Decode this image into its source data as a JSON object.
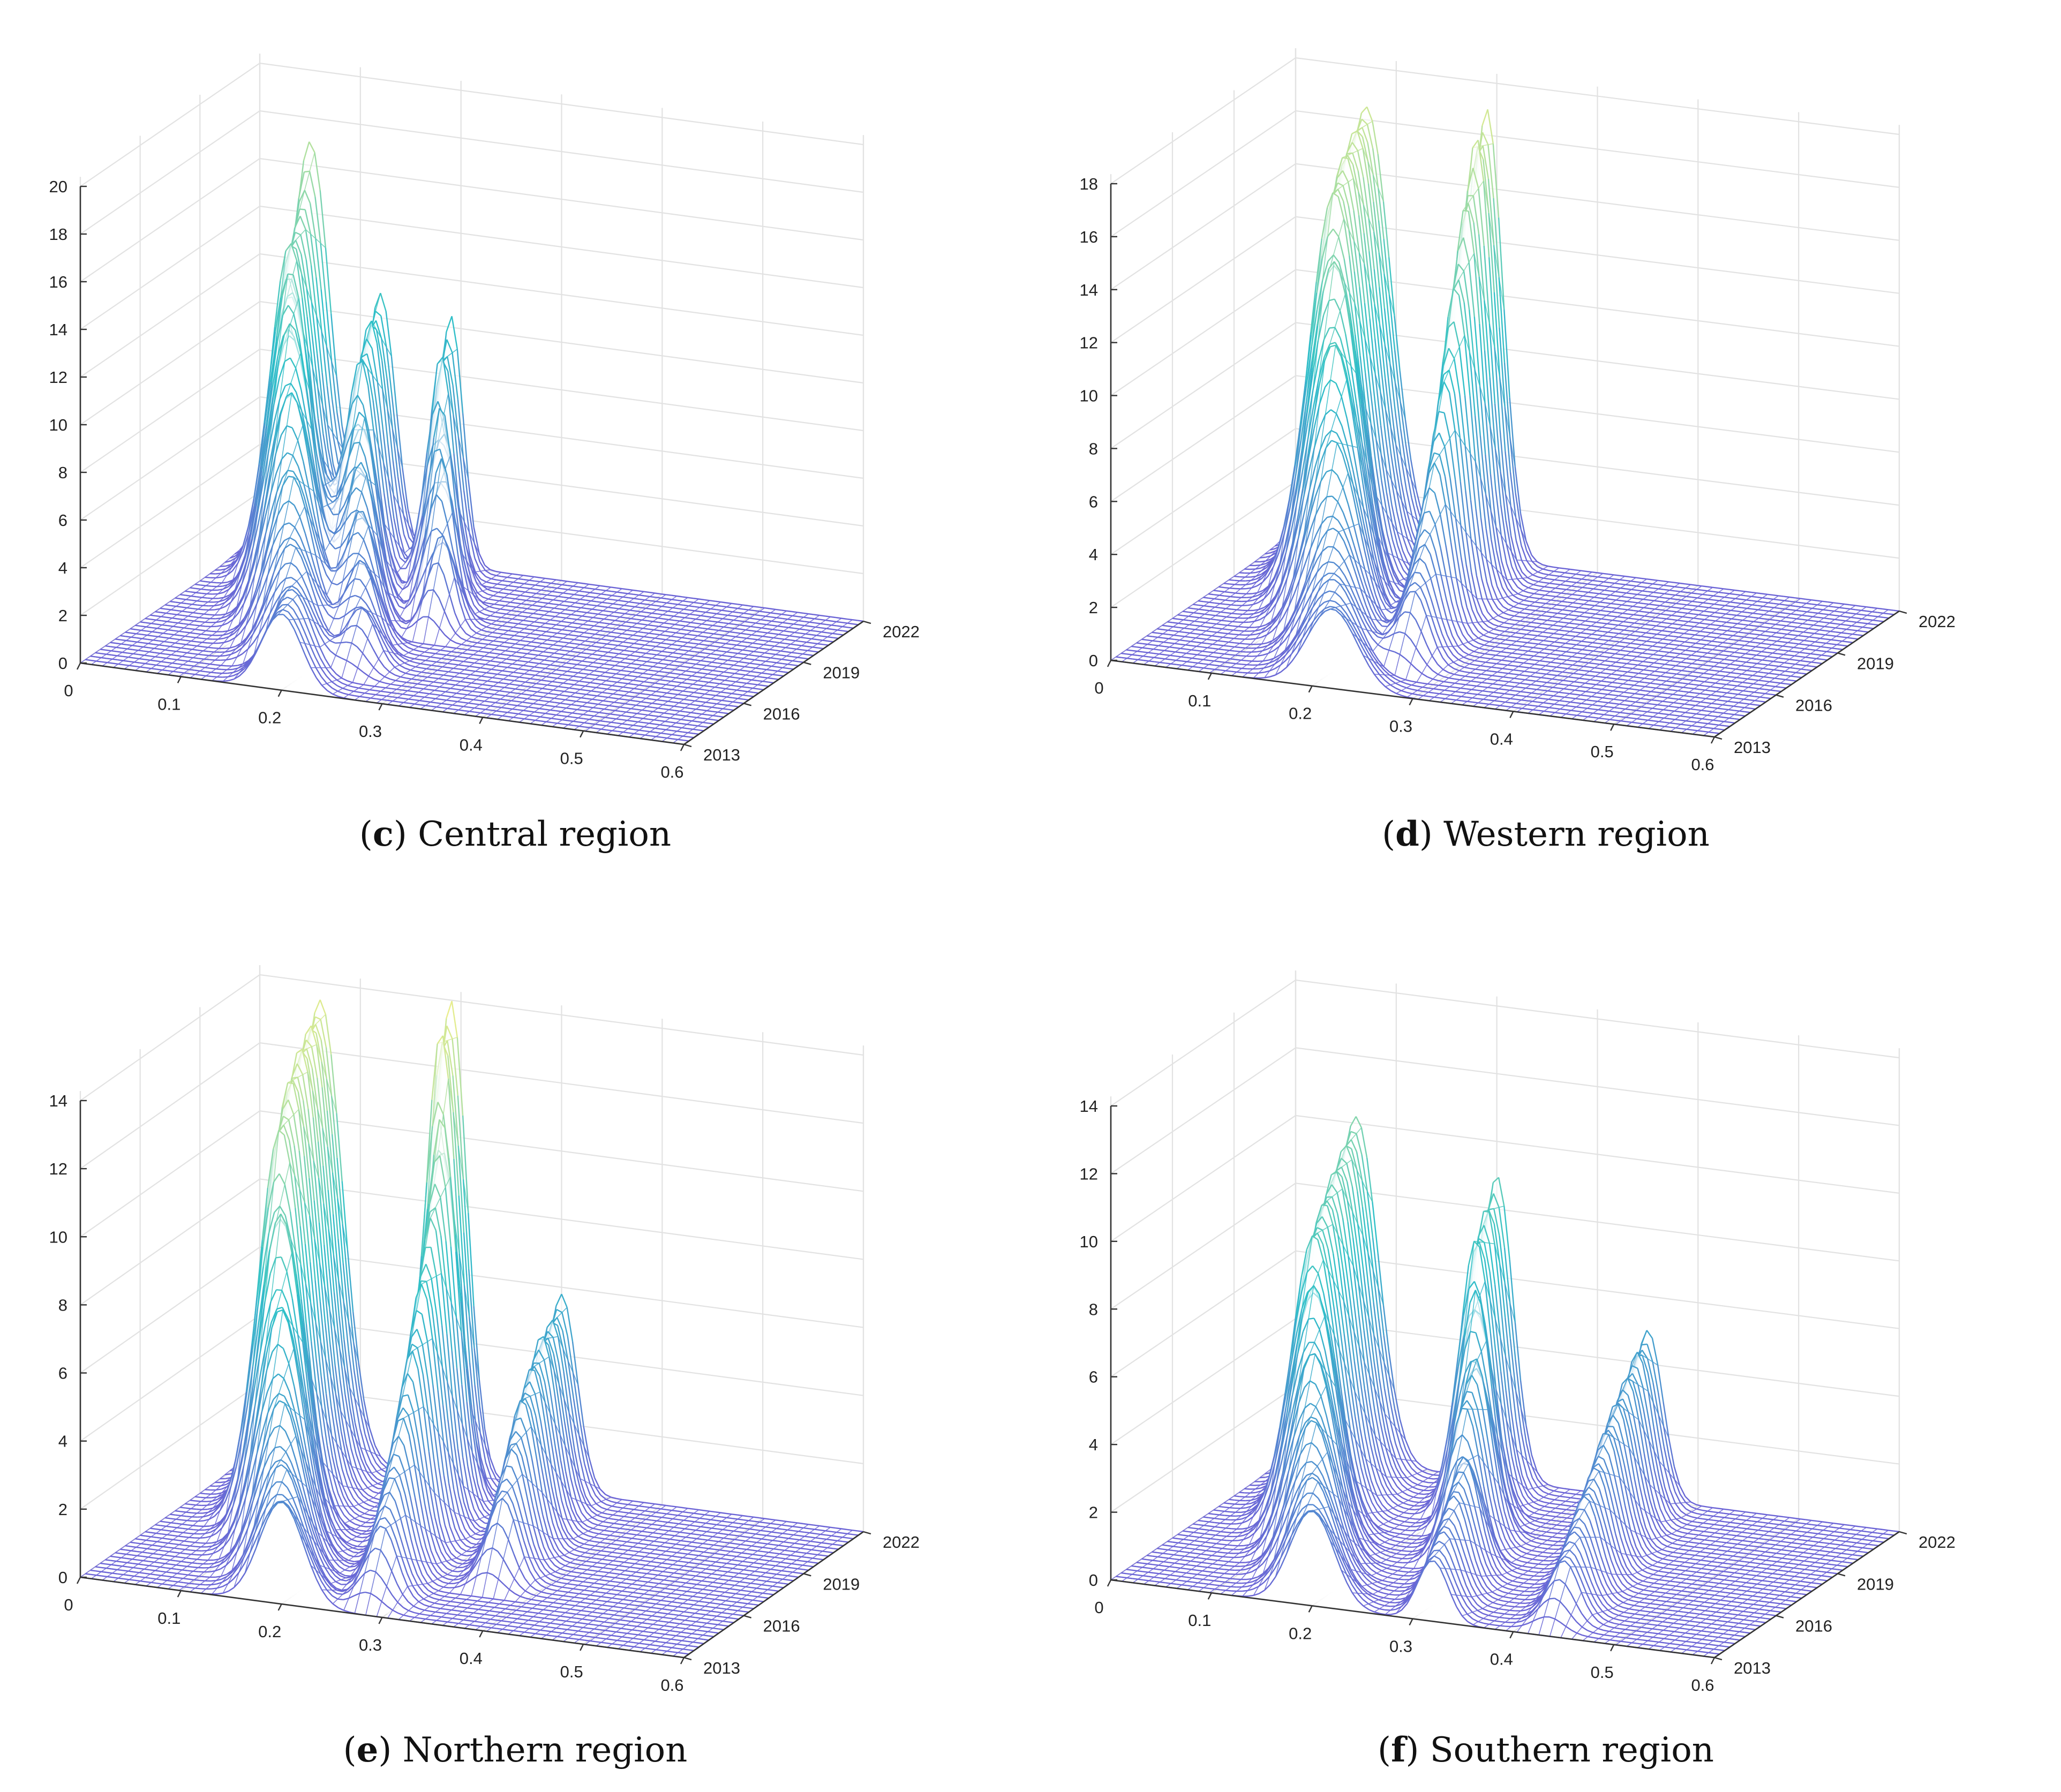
{
  "figure": {
    "panels": [
      {
        "id": "c",
        "letter": "c",
        "caption": "Central region",
        "chart_data": {
          "type": "surface",
          "title": "(c) Central region",
          "x": [
            0,
            0.1,
            0.2,
            0.3,
            0.4,
            0.5,
            0.6
          ],
          "x_ticks": [
            "0",
            "0.1",
            "0.2",
            "0.3",
            "0.4",
            "0.5",
            "0.6"
          ],
          "y_ticks": [
            "2013",
            "2016",
            "2019",
            "2022"
          ],
          "z_ticks": [
            "0",
            "2",
            "4",
            "6",
            "8",
            "10",
            "12",
            "14",
            "16",
            "18",
            "20"
          ],
          "zlim": [
            0,
            20
          ],
          "years": [
            2013,
            2014,
            2015,
            2016,
            2017,
            2018,
            2019,
            2020,
            2021,
            2022
          ],
          "series": [
            {
              "year": 2013,
              "peaks": [
                [
                  0.2,
                  3.2,
                  0.02
                ]
              ]
            },
            {
              "year": 2014,
              "peaks": [
                [
                  0.19,
                  3.6,
                  0.02
                ]
              ]
            },
            {
              "year": 2015,
              "peaks": [
                [
                  0.17,
                  4.8,
                  0.022
                ],
                [
                  0.24,
                  2.5,
                  0.015
                ]
              ]
            },
            {
              "year": 2016,
              "peaks": [
                [
                  0.15,
                  7.0,
                  0.022
                ],
                [
                  0.22,
                  3.8,
                  0.015
                ]
              ]
            },
            {
              "year": 2017,
              "peaks": [
                [
                  0.13,
                  9.8,
                  0.022
                ],
                [
                  0.2,
                  5.2,
                  0.015
                ]
              ]
            },
            {
              "year": 2018,
              "peaks": [
                [
                  0.11,
                  12.0,
                  0.022
                ],
                [
                  0.18,
                  6.5,
                  0.015
                ],
                [
                  0.26,
                  4.0,
                  0.012
                ]
              ]
            },
            {
              "year": 2019,
              "peaks": [
                [
                  0.09,
                  13.5,
                  0.02
                ],
                [
                  0.16,
                  8.0,
                  0.015
                ],
                [
                  0.24,
                  6.5,
                  0.012
                ]
              ]
            },
            {
              "year": 2020,
              "peaks": [
                [
                  0.07,
                  14.0,
                  0.02
                ],
                [
                  0.14,
                  9.5,
                  0.015
                ],
                [
                  0.22,
                  8.0,
                  0.012
                ]
              ]
            },
            {
              "year": 2021,
              "peaks": [
                [
                  0.06,
                  14.5,
                  0.02
                ],
                [
                  0.13,
                  10.5,
                  0.015
                ],
                [
                  0.2,
                  9.5,
                  0.012
                ]
              ]
            },
            {
              "year": 2022,
              "peaks": [
                [
                  0.05,
                  17.0,
                  0.02
                ],
                [
                  0.12,
                  11.0,
                  0.015
                ],
                [
                  0.19,
                  10.5,
                  0.012
                ]
              ]
            }
          ]
        }
      },
      {
        "id": "d",
        "letter": "d",
        "caption": "Western region",
        "chart_data": {
          "type": "surface",
          "title": "(d) Western region",
          "x": [
            0,
            0.1,
            0.2,
            0.3,
            0.4,
            0.5,
            0.6
          ],
          "x_ticks": [
            "0",
            "0.1",
            "0.2",
            "0.3",
            "0.4",
            "0.5",
            "0.6"
          ],
          "y_ticks": [
            "2013",
            "2016",
            "2019",
            "2022"
          ],
          "z_ticks": [
            "0",
            "2",
            "4",
            "6",
            "8",
            "10",
            "12",
            "14",
            "16",
            "18"
          ],
          "zlim": [
            0,
            18
          ],
          "years": [
            2013,
            2014,
            2015,
            2016,
            2017,
            2018,
            2019,
            2020,
            2021,
            2022
          ],
          "series": [
            {
              "year": 2013,
              "peaks": [
                [
                  0.22,
                  3.0,
                  0.025
                ]
              ]
            },
            {
              "year": 2014,
              "peaks": [
                [
                  0.2,
                  3.5,
                  0.025
                ]
              ]
            },
            {
              "year": 2015,
              "peaks": [
                [
                  0.18,
                  4.8,
                  0.025
                ],
                [
                  0.26,
                  2.8,
                  0.015
                ]
              ]
            },
            {
              "year": 2016,
              "peaks": [
                [
                  0.16,
                  7.5,
                  0.025
                ],
                [
                  0.25,
                  4.0,
                  0.015
                ]
              ]
            },
            {
              "year": 2017,
              "peaks": [
                [
                  0.14,
                  10.5,
                  0.025
                ],
                [
                  0.24,
                  6.5,
                  0.015
                ]
              ]
            },
            {
              "year": 2018,
              "peaks": [
                [
                  0.12,
                  13.0,
                  0.025
                ],
                [
                  0.23,
                  9.0,
                  0.015
                ]
              ]
            },
            {
              "year": 2019,
              "peaks": [
                [
                  0.1,
                  15.0,
                  0.025
                ],
                [
                  0.22,
                  12.0,
                  0.016
                ]
              ]
            },
            {
              "year": 2020,
              "peaks": [
                [
                  0.09,
                  15.8,
                  0.025
                ],
                [
                  0.21,
                  14.5,
                  0.016
                ]
              ]
            },
            {
              "year": 2021,
              "peaks": [
                [
                  0.08,
                  16.2,
                  0.025
                ],
                [
                  0.2,
                  16.5,
                  0.016
                ]
              ]
            },
            {
              "year": 2022,
              "peaks": [
                [
                  0.07,
                  16.5,
                  0.025
                ],
                [
                  0.19,
                  17.0,
                  0.016
                ]
              ]
            }
          ]
        }
      },
      {
        "id": "e",
        "letter": "e",
        "caption": "Northern region",
        "chart_data": {
          "type": "surface",
          "title": "(e) Northern region",
          "x": [
            0,
            0.1,
            0.2,
            0.3,
            0.4,
            0.5,
            0.6
          ],
          "x_ticks": [
            "0",
            "0.1",
            "0.2",
            "0.3",
            "0.4",
            "0.5",
            "0.6"
          ],
          "y_ticks": [
            "2013",
            "2016",
            "2019",
            "2022"
          ],
          "z_ticks": [
            "0",
            "2",
            "4",
            "6",
            "8",
            "10",
            "12",
            "14"
          ],
          "zlim": [
            0,
            14
          ],
          "years": [
            2013,
            2014,
            2015,
            2016,
            2017,
            2018,
            2019,
            2020,
            2021,
            2022
          ],
          "series": [
            {
              "year": 2013,
              "peaks": [
                [
                  0.2,
                  3.0,
                  0.022
                ]
              ]
            },
            {
              "year": 2014,
              "peaks": [
                [
                  0.18,
                  3.6,
                  0.022
                ],
                [
                  0.28,
                  2.2,
                  0.015
                ]
              ]
            },
            {
              "year": 2015,
              "peaks": [
                [
                  0.16,
                  5.0,
                  0.022
                ],
                [
                  0.27,
                  3.2,
                  0.015
                ]
              ]
            },
            {
              "year": 2016,
              "peaks": [
                [
                  0.14,
                  7.2,
                  0.022
                ],
                [
                  0.26,
                  4.5,
                  0.015
                ],
                [
                  0.36,
                  2.5,
                  0.015
                ]
              ]
            },
            {
              "year": 2017,
              "peaks": [
                [
                  0.12,
                  9.5,
                  0.022
                ],
                [
                  0.25,
                  6.0,
                  0.015
                ],
                [
                  0.35,
                  3.5,
                  0.015
                ]
              ]
            },
            {
              "year": 2018,
              "peaks": [
                [
                  0.1,
                  11.5,
                  0.022
                ],
                [
                  0.24,
                  7.5,
                  0.016
                ],
                [
                  0.34,
                  4.5,
                  0.015
                ]
              ]
            },
            {
              "year": 2019,
              "peaks": [
                [
                  0.09,
                  12.5,
                  0.022
                ],
                [
                  0.23,
                  9.0,
                  0.016
                ],
                [
                  0.33,
                  5.0,
                  0.015
                ]
              ]
            },
            {
              "year": 2020,
              "peaks": [
                [
                  0.08,
                  13.0,
                  0.022
                ],
                [
                  0.22,
                  11.5,
                  0.016
                ],
                [
                  0.32,
                  5.5,
                  0.015
                ]
              ]
            },
            {
              "year": 2021,
              "peaks": [
                [
                  0.07,
                  13.2,
                  0.022
                ],
                [
                  0.2,
                  13.5,
                  0.016
                ],
                [
                  0.31,
                  5.5,
                  0.015
                ]
              ]
            },
            {
              "year": 2022,
              "peaks": [
                [
                  0.06,
                  13.5,
                  0.022
                ],
                [
                  0.19,
                  14.0,
                  0.016
                ],
                [
                  0.3,
                  5.8,
                  0.015
                ]
              ]
            }
          ]
        }
      },
      {
        "id": "f",
        "letter": "f",
        "caption": "Southern region",
        "chart_data": {
          "type": "surface",
          "title": "(f) Southern region",
          "x": [
            0,
            0.1,
            0.2,
            0.3,
            0.4,
            0.5,
            0.6
          ],
          "x_ticks": [
            "0",
            "0.1",
            "0.2",
            "0.3",
            "0.4",
            "0.5",
            "0.6"
          ],
          "y_ticks": [
            "2013",
            "2016",
            "2019",
            "2022"
          ],
          "z_ticks": [
            "0",
            "2",
            "4",
            "6",
            "8",
            "10",
            "12",
            "14"
          ],
          "zlim": [
            0,
            14
          ],
          "years": [
            2013,
            2014,
            2015,
            2016,
            2017,
            2018,
            2019,
            2020,
            2021,
            2022
          ],
          "series": [
            {
              "year": 2013,
              "peaks": [
                [
                  0.2,
                  2.8,
                  0.022
                ],
                [
                  0.32,
                  1.8,
                  0.015
                ]
              ]
            },
            {
              "year": 2014,
              "peaks": [
                [
                  0.18,
                  3.3,
                  0.022
                ],
                [
                  0.31,
                  2.2,
                  0.015
                ],
                [
                  0.43,
                  1.8,
                  0.015
                ]
              ]
            },
            {
              "year": 2015,
              "peaks": [
                [
                  0.16,
                  4.5,
                  0.022
                ],
                [
                  0.3,
                  2.8,
                  0.015
                ],
                [
                  0.42,
                  2.2,
                  0.015
                ]
              ]
            },
            {
              "year": 2016,
              "peaks": [
                [
                  0.14,
                  6.0,
                  0.022
                ],
                [
                  0.29,
                  3.5,
                  0.015
                ],
                [
                  0.41,
                  2.8,
                  0.015
                ]
              ]
            },
            {
              "year": 2017,
              "peaks": [
                [
                  0.12,
                  7.5,
                  0.022
                ],
                [
                  0.27,
                  4.5,
                  0.016
                ],
                [
                  0.4,
                  3.2,
                  0.015
                ]
              ]
            },
            {
              "year": 2018,
              "peaks": [
                [
                  0.1,
                  8.5,
                  0.022
                ],
                [
                  0.26,
                  5.5,
                  0.016
                ],
                [
                  0.39,
                  3.8,
                  0.015
                ]
              ]
            },
            {
              "year": 2019,
              "peaks": [
                [
                  0.09,
                  9.0,
                  0.022
                ],
                [
                  0.24,
                  7.0,
                  0.016
                ],
                [
                  0.38,
                  4.2,
                  0.015
                ]
              ]
            },
            {
              "year": 2020,
              "peaks": [
                [
                  0.08,
                  9.5,
                  0.022
                ],
                [
                  0.22,
                  8.0,
                  0.016
                ],
                [
                  0.37,
                  4.5,
                  0.015
                ]
              ]
            },
            {
              "year": 2021,
              "peaks": [
                [
                  0.07,
                  9.8,
                  0.022
                ],
                [
                  0.21,
                  8.5,
                  0.016
                ],
                [
                  0.36,
                  4.8,
                  0.015
                ]
              ]
            },
            {
              "year": 2022,
              "peaks": [
                [
                  0.06,
                  10.2,
                  0.022
                ],
                [
                  0.2,
                  9.0,
                  0.016
                ],
                [
                  0.35,
                  5.0,
                  0.015
                ]
              ]
            }
          ]
        }
      }
    ]
  },
  "colors": {
    "low": "#6b63d6",
    "mid": "#2ec0c8",
    "high": "#f2f08a",
    "grid": "#e2e2e2",
    "axis": "#333333"
  }
}
